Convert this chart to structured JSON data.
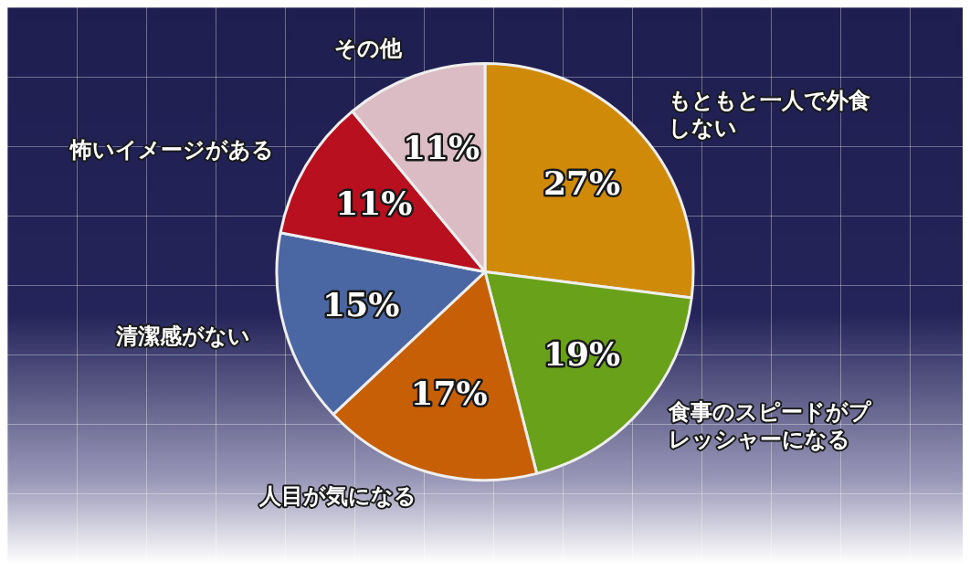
{
  "chart_data": {
    "type": "pie",
    "categories": [
      "もともと一人で外食しない",
      "食事のスピードがプレッシャーになる",
      "人目が気になる",
      "清潔感がない",
      "怖いイメージがある",
      "その他"
    ],
    "values": [
      27,
      19,
      17,
      15,
      11,
      11
    ],
    "colors": [
      "#d08a0a",
      "#6aa11a",
      "#c65f05",
      "#4a66a3",
      "#b8101e",
      "#dcbcc4"
    ],
    "value_labels": [
      "27%",
      "19%",
      "17%",
      "15%",
      "11%",
      "11%"
    ],
    "legend": false
  }
}
